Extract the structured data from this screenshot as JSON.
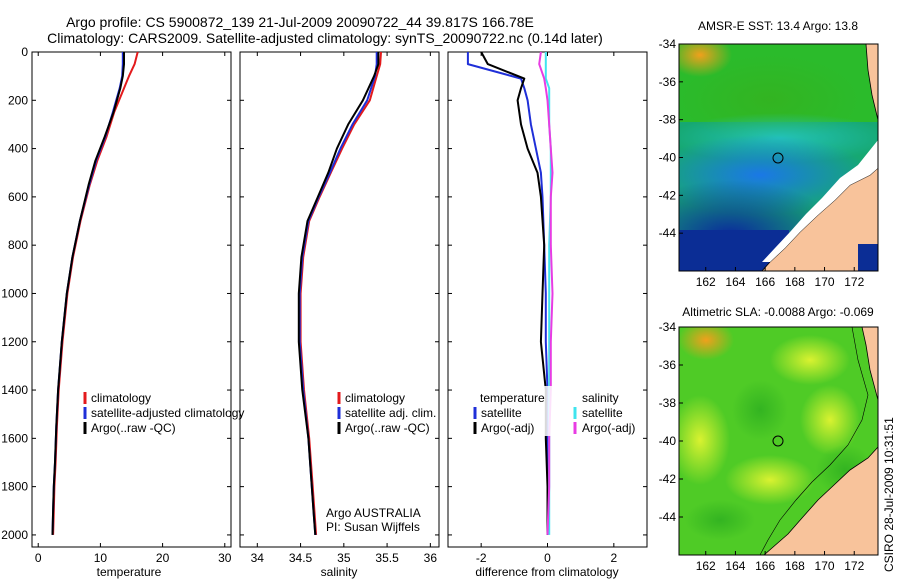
{
  "header": {
    "title_line1": "Argo profile: CS 5900872_139 21-Jul-2009 20090722_44 39.817S 166.78E",
    "title_line2": "Climatology: CARS2009. Satellite-adjusted climatology: synTS_20090722.nc (0.14d later)"
  },
  "colors": {
    "climatology": "#e31a1c",
    "satellite": "#1f2fd8",
    "argo": "#000000",
    "sal_satellite": "#3fe4ee",
    "sal_argo": "#e83ce3"
  },
  "chart_data": [
    {
      "type": "line",
      "id": "temperature",
      "xlabel": "temperature",
      "xlim": [
        -1,
        31
      ],
      "ylim": [
        2050,
        0
      ],
      "xticks": [
        0,
        10,
        20,
        30
      ],
      "yticks": [
        0,
        200,
        400,
        600,
        800,
        1000,
        1200,
        1400,
        1600,
        1800,
        2000
      ],
      "legend": [
        "climatology",
        "satellite-adjusted climatology",
        "Argo(..raw -QC)"
      ],
      "series": [
        {
          "name": "climatology",
          "color_key": "climatology",
          "x": [
            16.0,
            15.5,
            14.6,
            13.8,
            12.2,
            11.0,
            9.5,
            8.3,
            6.8,
            5.6,
            4.7,
            3.9,
            3.3,
            3.0,
            2.8,
            2.6,
            2.5,
            2.4
          ],
          "y": [
            0,
            50,
            100,
            150,
            250,
            350,
            450,
            550,
            700,
            850,
            1000,
            1200,
            1400,
            1550,
            1700,
            1800,
            1900,
            2000
          ]
        },
        {
          "name": "satellite-adjusted climatology",
          "color_key": "satellite",
          "x": [
            13.6,
            13.6,
            13.5,
            13.1,
            12.0,
            10.8,
            9.3,
            8.2,
            6.7,
            5.5,
            4.6,
            3.8,
            3.2,
            2.9,
            2.7,
            2.5,
            2.4,
            2.3
          ],
          "y": [
            0,
            50,
            100,
            150,
            250,
            350,
            450,
            550,
            700,
            850,
            1000,
            1200,
            1400,
            1550,
            1700,
            1800,
            1900,
            2000
          ]
        },
        {
          "name": "Argo(..raw -QC)",
          "color_key": "argo",
          "x": [
            13.8,
            13.8,
            13.6,
            13.2,
            12.1,
            10.7,
            9.2,
            8.1,
            6.7,
            5.5,
            4.6,
            3.8,
            3.2,
            2.9,
            2.7,
            2.5,
            2.4,
            2.3
          ],
          "y": [
            0,
            50,
            100,
            150,
            250,
            350,
            450,
            550,
            700,
            850,
            1000,
            1200,
            1400,
            1550,
            1700,
            1800,
            1900,
            2000
          ]
        }
      ]
    },
    {
      "type": "line",
      "id": "salinity",
      "xlabel": "salinity",
      "xlim": [
        33.8,
        36.1
      ],
      "ylim": [
        2050,
        0
      ],
      "xticks": [
        34,
        34.5,
        35,
        35.5,
        36
      ],
      "legend": [
        "climatology",
        "satellite adj. clim.",
        "Argo(..raw -QC)"
      ],
      "annotation_line1": "Argo AUSTRALIA",
      "annotation_line2": "PI: Susan Wijffels",
      "series": [
        {
          "name": "climatology",
          "color_key": "climatology",
          "x": [
            35.43,
            35.42,
            35.38,
            35.3,
            35.12,
            34.98,
            34.85,
            34.72,
            34.6,
            34.53,
            34.5,
            34.5,
            34.54,
            34.6,
            34.64,
            34.66,
            34.68
          ],
          "y": [
            0,
            50,
            100,
            200,
            300,
            400,
            500,
            600,
            700,
            850,
            1000,
            1200,
            1400,
            1600,
            1800,
            1900,
            2000
          ]
        },
        {
          "name": "satellite adj. clim.",
          "color_key": "satellite",
          "x": [
            35.38,
            35.38,
            35.36,
            35.27,
            35.1,
            34.96,
            34.84,
            34.71,
            34.59,
            34.52,
            34.49,
            34.49,
            34.53,
            34.59,
            34.63,
            34.65,
            34.67
          ],
          "y": [
            0,
            50,
            100,
            200,
            300,
            400,
            500,
            600,
            700,
            850,
            1000,
            1200,
            1400,
            1600,
            1800,
            1900,
            2000
          ]
        },
        {
          "name": "Argo(..raw -QC)",
          "color_key": "argo",
          "x": [
            35.4,
            35.4,
            35.35,
            35.22,
            35.05,
            34.92,
            34.82,
            34.7,
            34.58,
            34.51,
            34.48,
            34.48,
            34.52,
            34.59,
            34.63,
            34.65,
            34.67
          ],
          "y": [
            0,
            50,
            100,
            200,
            300,
            400,
            500,
            600,
            700,
            850,
            1000,
            1200,
            1400,
            1600,
            1800,
            1900,
            2000
          ]
        }
      ]
    },
    {
      "type": "line",
      "id": "difference",
      "xlabel": "difference from climatology",
      "xlim": [
        -3,
        3
      ],
      "ylim": [
        2050,
        0
      ],
      "xticks": [
        -2,
        0,
        2
      ],
      "legend_temperature_header": "temperature",
      "legend_salinity_header": "salinity",
      "legend_temperature": [
        "satellite",
        "Argo(-adj)"
      ],
      "legend_salinity": [
        "satellite",
        "Argo(-adj)"
      ],
      "series": [
        {
          "name": "temperature satellite",
          "color_key": "satellite",
          "x": [
            -2.4,
            -2.4,
            -0.8,
            -0.7,
            -0.6,
            -0.5,
            -0.35,
            -0.2,
            -0.15,
            -0.1,
            -0.05,
            -0.05,
            0.0,
            0.0,
            0.0,
            0.0
          ],
          "y": [
            0,
            50,
            110,
            150,
            200,
            300,
            400,
            500,
            600,
            800,
            1000,
            1200,
            1400,
            1600,
            1800,
            2000
          ]
        },
        {
          "name": "temperature Argo(-adj)",
          "color_key": "argo",
          "x": [
            -2.0,
            -1.8,
            -0.7,
            -0.8,
            -0.9,
            -0.8,
            -0.6,
            -0.3,
            -0.2,
            -0.1,
            -0.15,
            -0.2,
            -0.05,
            -0.05,
            0.0,
            0.0
          ],
          "y": [
            0,
            50,
            110,
            150,
            200,
            300,
            400,
            500,
            600,
            800,
            1000,
            1200,
            1400,
            1600,
            1800,
            2000
          ]
        },
        {
          "name": "salinity satellite",
          "color_key": "sal_satellite",
          "x": [
            -0.05,
            -0.05,
            -0.05,
            0.05,
            0.05,
            0.05,
            0.1,
            0.1,
            0.1,
            0.05,
            0.05,
            0.05,
            0.05,
            0.05,
            0.05,
            0.05
          ],
          "y": [
            0,
            50,
            110,
            150,
            200,
            300,
            400,
            500,
            600,
            800,
            1000,
            1200,
            1400,
            1600,
            1800,
            2000
          ]
        },
        {
          "name": "salinity Argo(-adj)",
          "color_key": "sal_argo",
          "x": [
            -0.2,
            -0.25,
            -0.1,
            -0.05,
            0.0,
            0.05,
            0.1,
            0.15,
            0.1,
            0.1,
            0.15,
            0.1,
            0.1,
            0.05,
            0.05,
            0.0
          ],
          "y": [
            0,
            50,
            110,
            150,
            200,
            300,
            400,
            500,
            600,
            800,
            1000,
            1200,
            1400,
            1600,
            1800,
            2000
          ]
        }
      ]
    },
    {
      "type": "heatmap",
      "id": "sst_map",
      "title": "AMSR-E SST: 13.4 Argo: 13.8",
      "xlim": [
        160.2,
        173.6
      ],
      "ylim": [
        -46,
        -34
      ],
      "xticks": [
        162,
        164,
        166,
        168,
        170,
        172
      ],
      "yticks": [
        -34,
        -36,
        -38,
        -40,
        -42,
        -44
      ],
      "float_position": {
        "lon": 166.78,
        "lat": -39.817
      }
    },
    {
      "type": "heatmap",
      "id": "sla_map",
      "title": "Altimetric SLA: -0.0088 Argo: -0.069",
      "xlim": [
        160.2,
        173.6
      ],
      "ylim": [
        -46,
        -34
      ],
      "xticks": [
        162,
        164,
        166,
        168,
        170,
        172
      ],
      "yticks": [
        -34,
        -36,
        -38,
        -40,
        -42,
        -44
      ],
      "float_position": {
        "lon": 166.78,
        "lat": -39.817
      }
    }
  ],
  "footer": {
    "side_stamp": "CSIRO 28-Jul-2009 10:31:51"
  }
}
